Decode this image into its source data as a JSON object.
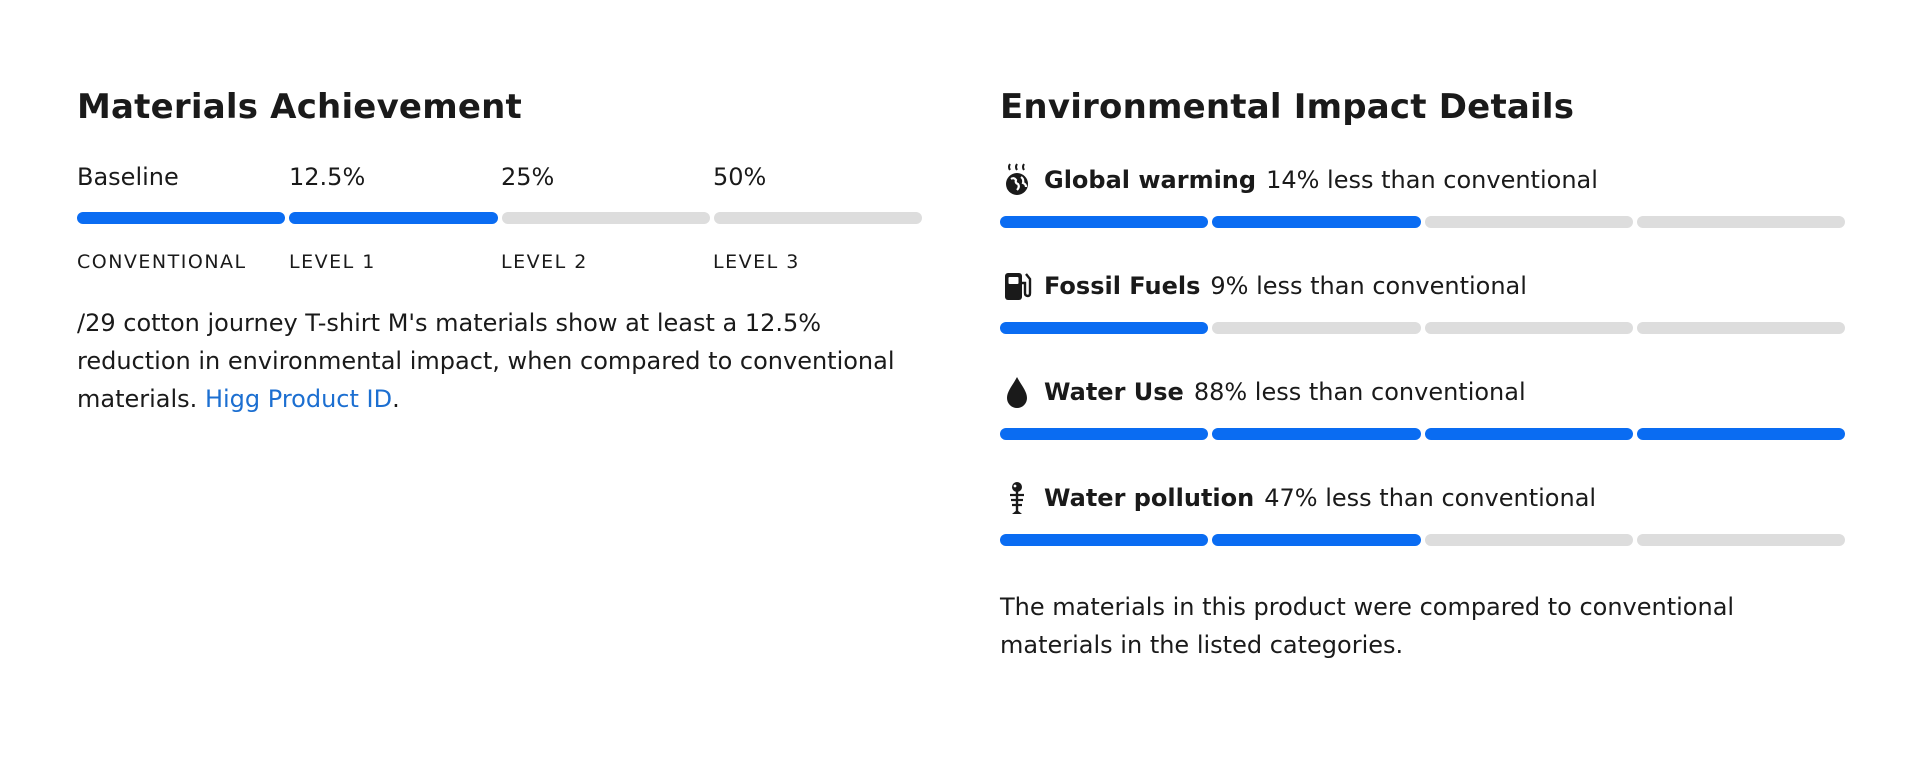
{
  "materials": {
    "title": "Materials Achievement",
    "levels": [
      {
        "value": "Baseline",
        "name": "CONVENTIONAL"
      },
      {
        "value": "12.5%",
        "name": "LEVEL 1"
      },
      {
        "value": "25%",
        "name": "LEVEL 2"
      },
      {
        "value": "50%",
        "name": "LEVEL 3"
      }
    ],
    "achieved_segments": 2,
    "total_segments": 4,
    "description": "/29 cotton journey T-shirt M's materials show at least a 12.5% reduction in environmental impact, when compared to conventional materials.",
    "link_text": "Higg Product ID",
    "link_suffix": "."
  },
  "impact": {
    "title": "Environmental Impact Details",
    "items": [
      {
        "icon": "global-warming-icon",
        "name": "Global warming",
        "text": "14% less than conventional",
        "segments_on": 2
      },
      {
        "icon": "fuel-pump-icon",
        "name": "Fossil Fuels",
        "text": "9% less than conventional",
        "segments_on": 1
      },
      {
        "icon": "water-drop-icon",
        "name": "Water Use",
        "text": "88% less than conventional",
        "segments_on": 4
      },
      {
        "icon": "fish-skeleton-icon",
        "name": "Water pollution",
        "text": "47% less than conventional",
        "segments_on": 2
      }
    ],
    "total_segments": 4,
    "note": "The materials in this product were compared to conventional materials in the listed categories."
  },
  "colors": {
    "accent": "#0a6cf2",
    "track": "#dddddd",
    "link": "#1c6fd1"
  }
}
